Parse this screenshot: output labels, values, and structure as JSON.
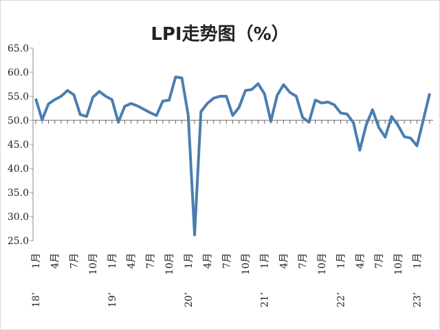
{
  "chart_data": {
    "type": "line",
    "title": "LPI走势图（%）",
    "categories": [
      "1月",
      null,
      null,
      "4月",
      null,
      null,
      "7月",
      null,
      null,
      "10月",
      null,
      null,
      "1月",
      null,
      null,
      "4月",
      null,
      null,
      "7月",
      null,
      null,
      "10月",
      null,
      null,
      "1月",
      null,
      null,
      "4月",
      null,
      null,
      "7月",
      null,
      null,
      "10月",
      null,
      null,
      "1月",
      null,
      null,
      "4月",
      null,
      null,
      "7月",
      null,
      null,
      "10月",
      null,
      null,
      "1月",
      null,
      null,
      "4月",
      null,
      null,
      "7月",
      null,
      null,
      "10月",
      null,
      null,
      "1月",
      null,
      null
    ],
    "category_years": [
      "18’",
      null,
      null,
      null,
      null,
      null,
      null,
      null,
      null,
      null,
      null,
      null,
      "19’",
      null,
      null,
      null,
      null,
      null,
      null,
      null,
      null,
      null,
      null,
      null,
      "20’",
      null,
      null,
      null,
      null,
      null,
      null,
      null,
      null,
      null,
      null,
      null,
      "21’",
      null,
      null,
      null,
      null,
      null,
      null,
      null,
      null,
      null,
      null,
      null,
      "22’",
      null,
      null,
      null,
      null,
      null,
      null,
      null,
      null,
      null,
      null,
      null,
      "23’",
      null,
      null
    ],
    "series": [
      {
        "name": "LPI",
        "color": "#4a7eb0",
        "values": [
          54.5,
          50.1,
          53.4,
          54.3,
          55.0,
          56.2,
          55.3,
          51.2,
          50.8,
          54.8,
          56.0,
          55.0,
          54.3,
          49.6,
          52.9,
          53.5,
          53.0,
          52.3,
          51.6,
          51.0,
          54.0,
          54.2,
          59.0,
          58.8,
          51.0,
          26.2,
          51.8,
          53.5,
          54.6,
          55.0,
          55.0,
          51.0,
          52.7,
          56.2,
          56.4,
          57.6,
          55.5,
          49.8,
          55.2,
          57.4,
          55.8,
          55.0,
          50.6,
          49.6,
          54.2,
          53.6,
          53.8,
          53.2,
          51.5,
          51.3,
          49.5,
          43.8,
          49.0,
          52.2,
          48.5,
          46.5,
          50.8,
          49.0,
          46.6,
          46.3,
          44.7,
          50.1,
          55.6
        ]
      }
    ],
    "ylim": [
      25,
      65
    ],
    "yticks": [
      {
        "value": 25,
        "label": "25.0"
      },
      {
        "value": 30,
        "label": "30.0"
      },
      {
        "value": 35,
        "label": "35.0"
      },
      {
        "value": 40,
        "label": "40.0"
      },
      {
        "value": 45,
        "label": "45.0"
      },
      {
        "value": 50,
        "label": "50.0"
      },
      {
        "value": 55,
        "label": "55.0"
      },
      {
        "value": 60,
        "label": "60.0"
      },
      {
        "value": 65,
        "label": "65.0"
      }
    ],
    "x_axis_crosses": 50
  }
}
